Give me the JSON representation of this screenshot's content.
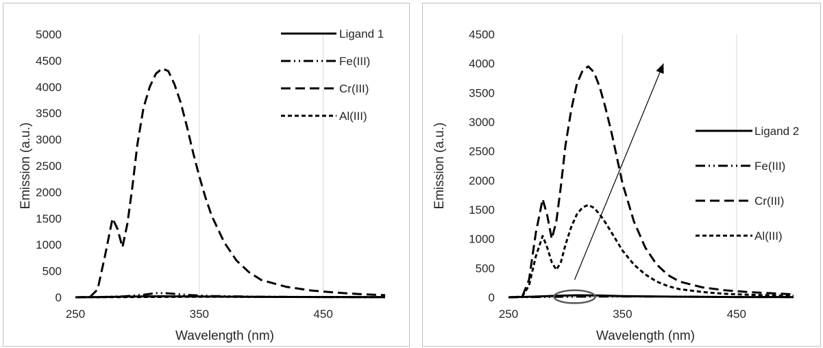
{
  "chart_data": [
    {
      "type": "line",
      "title": "",
      "xlabel": "Wavelength (nm)",
      "ylabel": "Emission (a.u.)",
      "xlim": [
        250,
        500
      ],
      "ylim": [
        0,
        5000
      ],
      "xticks": [
        250,
        350,
        450
      ],
      "yticks": [
        0,
        500,
        1000,
        1500,
        2000,
        2500,
        3000,
        3500,
        4000,
        4500,
        5000
      ],
      "grid": "vertical",
      "legend_position": "top-right",
      "series": [
        {
          "name": "Ligand 1",
          "style": "solid",
          "x": [
            250,
            270,
            300,
            320,
            350,
            400,
            450,
            500
          ],
          "y": [
            0,
            5,
            15,
            20,
            15,
            8,
            5,
            3
          ]
        },
        {
          "name": "Fe(III)",
          "style": "dashdotdot",
          "x": [
            250,
            270,
            290,
            305,
            315,
            325,
            340,
            360,
            400,
            450,
            500
          ],
          "y": [
            0,
            5,
            20,
            50,
            80,
            75,
            45,
            25,
            10,
            5,
            3
          ]
        },
        {
          "name": "Cr(III)",
          "style": "dash",
          "x": [
            250,
            262,
            268,
            274,
            280,
            284,
            288,
            292,
            296,
            300,
            305,
            310,
            315,
            320,
            325,
            330,
            335,
            340,
            345,
            350,
            355,
            360,
            370,
            380,
            390,
            400,
            420,
            440,
            460,
            480,
            500
          ],
          "y": [
            0,
            10,
            150,
            800,
            1500,
            1300,
            950,
            1400,
            2100,
            2900,
            3600,
            4000,
            4250,
            4350,
            4300,
            4050,
            3700,
            3250,
            2750,
            2300,
            1900,
            1550,
            1050,
            700,
            480,
            330,
            200,
            130,
            90,
            60,
            40
          ]
        },
        {
          "name": "Al(III)",
          "style": "shortdash",
          "x": [
            250,
            300,
            350,
            400,
            450,
            500
          ],
          "y": [
            0,
            5,
            10,
            8,
            5,
            3
          ]
        }
      ]
    },
    {
      "type": "line",
      "title": "",
      "xlabel": "Wavelength (nm)",
      "ylabel": "Emission (a.u.)",
      "xlim": [
        250,
        500
      ],
      "ylim": [
        0,
        4500
      ],
      "xticks": [
        250,
        350,
        450
      ],
      "yticks": [
        0,
        500,
        1000,
        1500,
        2000,
        2500,
        3000,
        3500,
        4000,
        4500
      ],
      "grid": "vertical",
      "legend_position": "right",
      "annotations": [
        {
          "type": "arrow",
          "from": [
            308,
            300
          ],
          "to": [
            386,
            4000
          ]
        },
        {
          "type": "ellipse",
          "center": [
            308,
            10
          ],
          "rx": 18,
          "ry": 110
        }
      ],
      "series": [
        {
          "name": "Ligand 2",
          "style": "solid",
          "x": [
            250,
            270,
            290,
            310,
            330,
            350,
            400,
            450,
            500
          ],
          "y": [
            0,
            10,
            25,
            35,
            30,
            20,
            10,
            5,
            3
          ]
        },
        {
          "name": "Fe(III)",
          "style": "dashdotdot",
          "x": [
            250,
            300,
            350,
            400,
            450,
            500
          ],
          "y": [
            0,
            10,
            15,
            10,
            5,
            3
          ]
        },
        {
          "name": "Cr(III)",
          "style": "dash",
          "x": [
            250,
            262,
            268,
            274,
            280,
            284,
            288,
            292,
            296,
            300,
            305,
            310,
            315,
            320,
            325,
            330,
            335,
            340,
            345,
            350,
            360,
            370,
            380,
            390,
            400,
            420,
            440,
            460,
            480,
            500
          ],
          "y": [
            0,
            10,
            300,
            1100,
            1680,
            1400,
            1000,
            1300,
            1900,
            2600,
            3200,
            3650,
            3880,
            3950,
            3850,
            3600,
            3250,
            2850,
            2400,
            1950,
            1300,
            850,
            560,
            380,
            270,
            170,
            120,
            90,
            70,
            50
          ]
        },
        {
          "name": "Al(III)",
          "style": "shortdash",
          "x": [
            250,
            262,
            268,
            274,
            280,
            284,
            288,
            292,
            296,
            300,
            305,
            310,
            315,
            320,
            325,
            330,
            335,
            340,
            350,
            360,
            370,
            380,
            390,
            400,
            420,
            440,
            460,
            480,
            500
          ],
          "y": [
            0,
            10,
            200,
            700,
            1050,
            850,
            600,
            470,
            600,
            900,
            1200,
            1420,
            1540,
            1580,
            1530,
            1420,
            1280,
            1120,
            800,
            560,
            390,
            270,
            190,
            140,
            90,
            60,
            45,
            35,
            25
          ]
        }
      ]
    }
  ]
}
